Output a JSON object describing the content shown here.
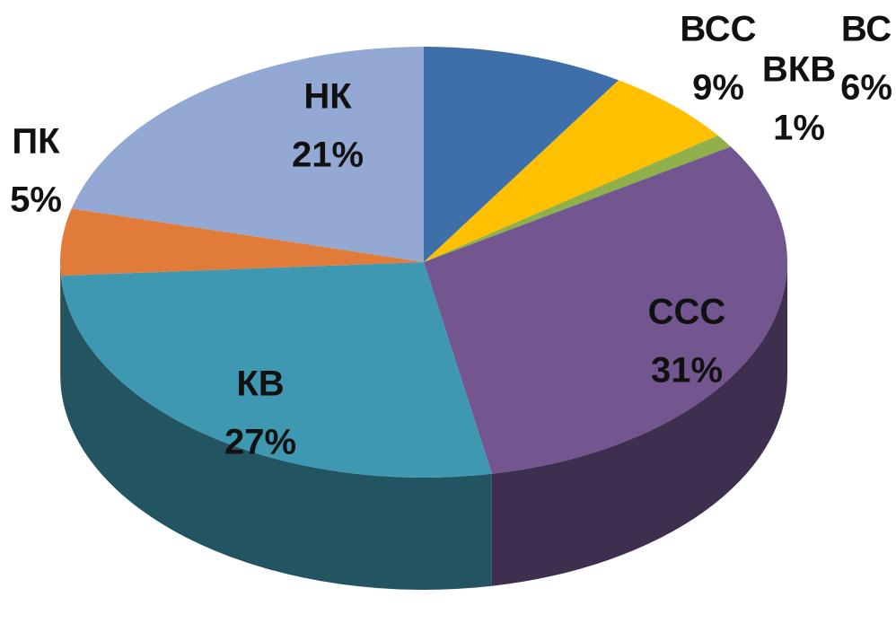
{
  "chart_data": {
    "type": "pie",
    "categories": [
      "ВСС",
      "ВС",
      "ВКВ",
      "ССС",
      "КВ",
      "ПК",
      "НК"
    ],
    "values": [
      9,
      6,
      1,
      31,
      27,
      5,
      21
    ],
    "value_labels": [
      "9%",
      "6%",
      "1%",
      "31%",
      "27%",
      "5%",
      "21%"
    ],
    "colors": [
      "#3f6fa8",
      "#ffc000",
      "#8fb04a",
      "#73558f",
      "#3f98b2",
      "#e07b39",
      "#93a9d3"
    ]
  }
}
